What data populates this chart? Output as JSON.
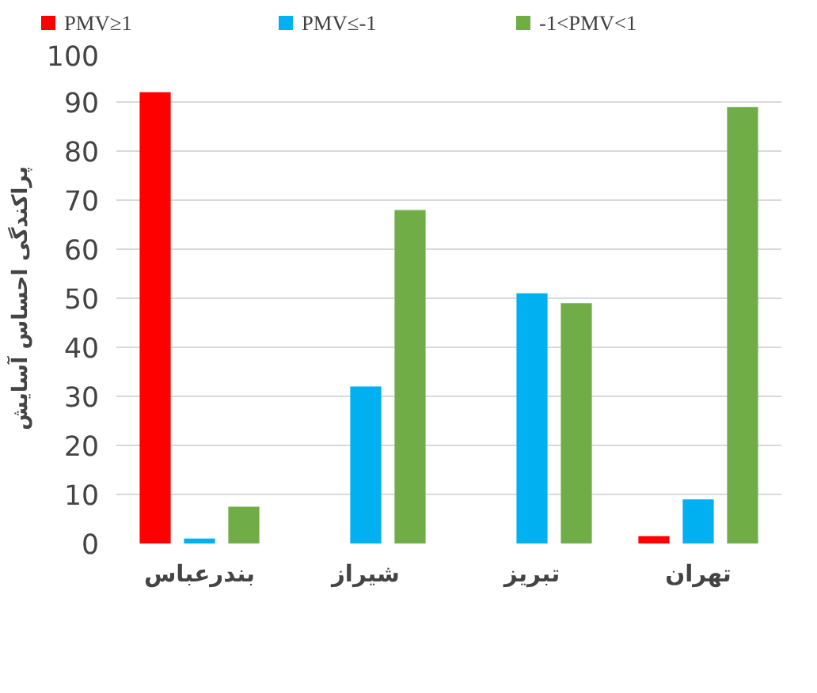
{
  "chart_data": {
    "type": "bar",
    "ylabel": "پراکندگی احساس آسایش",
    "categories": [
      "بندرعباس",
      "شیراز",
      "تبریز",
      "تهران"
    ],
    "series": [
      {
        "name": "PMV≥1",
        "color": "#ff0000",
        "values": [
          92,
          0,
          0,
          1.5
        ]
      },
      {
        "name": "PMV≤-1",
        "color": "#00b0f0",
        "values": [
          1,
          32,
          51,
          9
        ]
      },
      {
        "name": "-1<PMV<1",
        "color": "#70ad47",
        "values": [
          7.5,
          68,
          49,
          89
        ]
      }
    ],
    "ylim": [
      0,
      100
    ],
    "yticks": [
      0,
      10,
      20,
      30,
      40,
      50,
      60,
      70,
      80,
      90,
      100
    ],
    "grid": "y",
    "legend": "top"
  }
}
